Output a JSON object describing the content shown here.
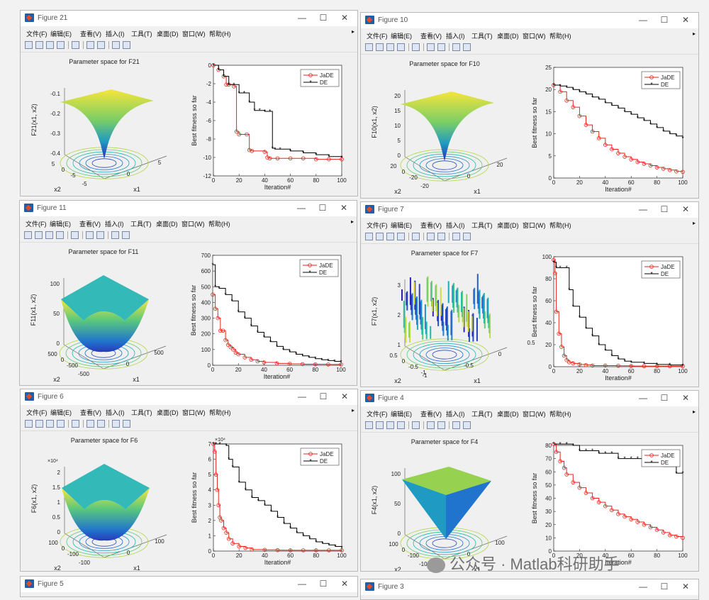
{
  "menus": [
    "文件(F)",
    "编辑(E)",
    "查看(V)",
    "插入(I)",
    "工具(T)",
    "桌面(D)",
    "窗口(W)",
    "帮助(H)"
  ],
  "legend": [
    "JaDE",
    "DE"
  ],
  "common": {
    "best_fitness_label": "Best fitness so far",
    "iteration_label": "Iteration#",
    "minimize": "—",
    "maximize": "☐",
    "close": "✕"
  },
  "colors": {
    "jade": "#e8231b",
    "de": "#000000",
    "surface_low": "#2a1fb0",
    "surface_mid": "#1fa3c8",
    "surface_high": "#f6e53a"
  },
  "watermark": "公众号 · Matlab科研助手",
  "figures": [
    {
      "id": "f21",
      "title": "Figure 21",
      "surface_title": "Parameter space for F21",
      "z_label": "F21(x1, x2)",
      "z_ticks": [
        "-0.1",
        "-0.2",
        "-0.3",
        "-0.4"
      ],
      "x1_ticks": [
        "0",
        "5"
      ],
      "x2_ticks": [
        "5",
        "0",
        "-5"
      ],
      "x_labels": [
        "x2",
        "x1"
      ],
      "extra_ticks": [
        "-5"
      ],
      "surface_shape": "inverted-funnel",
      "chart_data": {
        "type": "line",
        "title": "",
        "xlabel": "Iteration#",
        "ylabel": "Best fitness so far",
        "xlim": [
          0,
          100
        ],
        "ylim": [
          -12,
          0
        ],
        "xticks": [
          0,
          20,
          40,
          60,
          80,
          100
        ],
        "yticks": [
          0,
          -2,
          -4,
          -6,
          -8,
          -10,
          -12
        ],
        "legend_position": "top-right",
        "series": [
          {
            "name": "JaDE",
            "x": [
              0,
              4,
              8,
              10,
              12,
              16,
              18,
              20,
              26,
              28,
              30,
              40,
              42,
              44,
              50,
              60,
              70,
              80,
              90,
              100
            ],
            "y": [
              0,
              -0.5,
              -1.2,
              -2.1,
              -2.1,
              -2.3,
              -7.2,
              -7.5,
              -7.5,
              -9.2,
              -9.3,
              -9.4,
              -10.0,
              -10.1,
              -10.1,
              -10.1,
              -10.1,
              -10.2,
              -10.2,
              -10.2
            ]
          },
          {
            "name": "DE",
            "x": [
              0,
              4,
              8,
              12,
              16,
              20,
              24,
              28,
              32,
              36,
              40,
              44,
              46,
              48,
              52,
              60,
              70,
              80,
              90,
              100
            ],
            "y": [
              0,
              -0.5,
              -1.2,
              -2.1,
              -2.1,
              -3.0,
              -3.0,
              -4.0,
              -4.9,
              -4.9,
              -5.0,
              -5.0,
              -9.0,
              -9.1,
              -9.1,
              -9.3,
              -9.5,
              -9.7,
              -9.9,
              -10.0
            ]
          }
        ]
      }
    },
    {
      "id": "f10",
      "title": "Figure 10",
      "surface_title": "Parameter space for F10",
      "z_label": "F10(x1, x2)",
      "z_ticks": [
        "20",
        "15",
        "10",
        "5",
        "0"
      ],
      "x1_ticks": [
        "0",
        "20"
      ],
      "x2_ticks": [
        "20",
        "0",
        "-20"
      ],
      "x_labels": [
        "x2",
        "x1"
      ],
      "extra_ticks": [
        "-20"
      ],
      "surface_shape": "funnel",
      "chart_data": {
        "type": "line",
        "title": "",
        "xlabel": "Iteration#",
        "ylabel": "Best fitness so far",
        "xlim": [
          0,
          100
        ],
        "ylim": [
          0,
          25
        ],
        "xticks": [
          0,
          20,
          40,
          60,
          80,
          100
        ],
        "yticks": [
          0,
          5,
          10,
          15,
          20,
          25
        ],
        "legend_position": "top-right",
        "series": [
          {
            "name": "JaDE",
            "x": [
              0,
              5,
              10,
              15,
              20,
              25,
              30,
              35,
              40,
              45,
              50,
              55,
              60,
              65,
              70,
              75,
              80,
              85,
              90,
              95,
              100
            ],
            "y": [
              21,
              19.5,
              17.5,
              16,
              14,
              12,
              10.5,
              9,
              7.5,
              6.5,
              5.6,
              4.8,
              4.2,
              3.6,
              3.2,
              2.8,
              2.4,
              2.1,
              1.8,
              1.5,
              1.4
            ]
          },
          {
            "name": "DE",
            "x": [
              0,
              5,
              10,
              15,
              20,
              25,
              30,
              35,
              40,
              45,
              50,
              55,
              60,
              65,
              70,
              75,
              80,
              85,
              90,
              95,
              100
            ],
            "y": [
              21,
              20.8,
              20.5,
              20,
              19.5,
              19,
              18.3,
              17.8,
              17,
              16.4,
              15.8,
              15,
              14.4,
              13.6,
              13,
              12.2,
              11.4,
              10.6,
              10,
              9.5,
              9
            ]
          }
        ]
      }
    },
    {
      "id": "f11",
      "title": "Figure 11",
      "surface_title": "Parameter space for F11",
      "z_label": "F11(x1, x2)",
      "z_ticks": [
        "100",
        "50",
        "0"
      ],
      "x1_ticks": [
        "0",
        "500"
      ],
      "x2_ticks": [
        "500",
        "0",
        "-500"
      ],
      "x_labels": [
        "x2",
        "x1"
      ],
      "extra_ticks": [
        "-500"
      ],
      "surface_shape": "bowl",
      "chart_data": {
        "type": "line",
        "title": "",
        "xlabel": "Iteration#",
        "ylabel": "Best fitness so far",
        "xlim": [
          0,
          100
        ],
        "ylim": [
          0,
          700
        ],
        "xticks": [
          0,
          20,
          40,
          60,
          80,
          100
        ],
        "yticks": [
          0,
          100,
          200,
          300,
          400,
          500,
          600,
          700
        ],
        "legend_position": "top-right",
        "series": [
          {
            "name": "JaDE",
            "x": [
              0,
              2,
              4,
              6,
              8,
              10,
              12,
              14,
              16,
              18,
              20,
              25,
              30,
              35,
              40,
              50,
              60,
              70,
              80,
              90,
              100
            ],
            "y": [
              450,
              360,
              300,
              220,
              220,
              160,
              130,
              115,
              100,
              80,
              70,
              50,
              35,
              25,
              18,
              12,
              9,
              7,
              6,
              5,
              5
            ]
          },
          {
            "name": "DE",
            "x": [
              0,
              2,
              5,
              10,
              15,
              20,
              25,
              30,
              35,
              40,
              45,
              50,
              55,
              60,
              65,
              70,
              75,
              80,
              85,
              90,
              95,
              100
            ],
            "y": [
              640,
              500,
              490,
              450,
              410,
              340,
              300,
              250,
              210,
              180,
              150,
              120,
              100,
              85,
              70,
              60,
              50,
              42,
              35,
              30,
              25,
              20
            ]
          }
        ]
      }
    },
    {
      "id": "f7",
      "title": "Figure 7",
      "surface_title": "Parameter space for F7",
      "z_label": "F7(x1, x2)",
      "z_ticks": [
        "3",
        "2",
        "1"
      ],
      "x1_ticks": [
        "-0.5",
        "0",
        "0.5"
      ],
      "x2_ticks": [
        "0.5",
        "0",
        "-0.5",
        "-1"
      ],
      "x_labels": [
        "x2",
        "x1"
      ],
      "extra_ticks": [
        "-1"
      ],
      "surface_shape": "noisy",
      "chart_data": {
        "type": "line",
        "title": "",
        "xlabel": "Iteration#",
        "ylabel": "Best fitness so far",
        "xlim": [
          0,
          100
        ],
        "ylim": [
          0,
          100
        ],
        "xticks": [
          0,
          20,
          40,
          60,
          80,
          100
        ],
        "yticks": [
          0,
          20,
          40,
          60,
          80,
          100
        ],
        "legend_position": "top-right",
        "series": [
          {
            "name": "JaDE",
            "x": [
              0,
              1,
              2,
              4,
              6,
              8,
              10,
              12,
              15,
              20,
              25,
              30,
              40,
              50,
              60,
              70,
              80,
              90,
              100
            ],
            "y": [
              97,
              85,
              50,
              30,
              18,
              10,
              6,
              4,
              3,
              2,
              1.5,
              1,
              1,
              0.8,
              0.6,
              0.5,
              0.5,
              0.5,
              0.5
            ]
          },
          {
            "name": "DE",
            "x": [
              0,
              2,
              5,
              10,
              12,
              15,
              20,
              25,
              30,
              35,
              40,
              45,
              50,
              55,
              60,
              70,
              80,
              90,
              100
            ],
            "y": [
              95,
              90,
              90,
              90,
              70,
              55,
              45,
              35,
              28,
              20,
              15,
              10,
              7,
              5,
              4,
              3,
              2,
              1.5,
              1
            ]
          }
        ]
      }
    },
    {
      "id": "f6",
      "title": "Figure 6",
      "surface_title": "Parameter space for F6",
      "z_label": "F6(x1, x2)",
      "z_ticks": [
        "2",
        "1.5",
        "1",
        "0.5",
        "0"
      ],
      "z_mult": "×10⁴",
      "x1_ticks": [
        "0",
        "100"
      ],
      "x2_ticks": [
        "100",
        "0",
        "-100"
      ],
      "x_labels": [
        "x2",
        "x1"
      ],
      "extra_ticks": [
        "-100"
      ],
      "surface_shape": "bowl",
      "chart_data": {
        "type": "line",
        "title": "",
        "xlabel": "Iteration#",
        "ylabel": "Best fitness so far",
        "xlim": [
          0,
          100
        ],
        "ylim": [
          0,
          7
        ],
        "y_multiplier": "×10⁴",
        "xticks": [
          0,
          20,
          40,
          60,
          80,
          100
        ],
        "yticks": [
          0,
          1,
          2,
          3,
          4,
          5,
          6,
          7
        ],
        "legend_position": "top-right",
        "series": [
          {
            "name": "JaDE",
            "x": [
              0,
              1,
              2,
              3,
              4,
              5,
              6,
              8,
              10,
              12,
              15,
              20,
              25,
              30,
              40,
              50,
              60,
              70,
              80,
              90,
              100
            ],
            "y": [
              7,
              6.5,
              5,
              4,
              3,
              2.2,
              2,
              1.5,
              1.2,
              0.8,
              0.5,
              0.3,
              0.2,
              0.1,
              0.08,
              0.06,
              0.05,
              0.05,
              0.05,
              0.05,
              0.05
            ]
          },
          {
            "name": "DE",
            "x": [
              0,
              2,
              5,
              10,
              12,
              15,
              20,
              25,
              30,
              35,
              40,
              45,
              50,
              55,
              60,
              65,
              70,
              75,
              80,
              85,
              90,
              95,
              100
            ],
            "y": [
              7,
              7,
              7,
              6.9,
              6,
              5.5,
              4.5,
              4,
              3.5,
              3.3,
              3.0,
              2.6,
              2.2,
              1.8,
              1.5,
              1.2,
              1.0,
              0.8,
              0.6,
              0.5,
              0.4,
              0.3,
              0.2
            ]
          }
        ]
      }
    },
    {
      "id": "f4",
      "title": "Figure 4",
      "surface_title": "Parameter space for F4",
      "z_label": "F4(x1, x2)",
      "z_ticks": [
        "100",
        "50",
        "0"
      ],
      "x1_ticks": [
        "0",
        "100"
      ],
      "x2_ticks": [
        "100",
        "0",
        "-100"
      ],
      "x_labels": [
        "x2",
        "x1"
      ],
      "extra_ticks": [
        "-100"
      ],
      "surface_shape": "pyramid",
      "chart_data": {
        "type": "line",
        "title": "",
        "xlabel": "Iteration#",
        "ylabel": "Best fitness so far",
        "xlim": [
          0,
          100
        ],
        "ylim": [
          0,
          80
        ],
        "xticks": [
          0,
          20,
          40,
          60,
          80,
          100
        ],
        "yticks": [
          0,
          10,
          20,
          30,
          40,
          50,
          60,
          70,
          80
        ],
        "legend_position": "top-right",
        "series": [
          {
            "name": "JaDE",
            "x": [
              0,
              2,
              5,
              8,
              10,
              15,
              20,
              25,
              30,
              35,
              40,
              45,
              50,
              55,
              60,
              65,
              70,
              75,
              80,
              85,
              90,
              95,
              100
            ],
            "y": [
              81,
              75,
              68,
              63,
              58,
              52,
              48,
              44,
              40,
              37,
              34,
              31,
              28,
              26,
              24,
              22,
              20,
              18,
              16,
              14,
              12,
              11,
              10
            ]
          },
          {
            "name": "DE",
            "x": [
              0,
              5,
              10,
              15,
              20,
              25,
              30,
              35,
              40,
              45,
              50,
              55,
              60,
              65,
              70,
              75,
              80,
              85,
              90,
              95,
              100
            ],
            "y": [
              81,
              81,
              81,
              80,
              76,
              76,
              76,
              74,
              74,
              74,
              70,
              70,
              70,
              70,
              67,
              67,
              67,
              64,
              64,
              59,
              59
            ]
          }
        ]
      }
    }
  ],
  "bottom_figures": [
    {
      "id": "f5",
      "title": "Figure 5"
    },
    {
      "id": "f3",
      "title": "Figure 3"
    }
  ]
}
